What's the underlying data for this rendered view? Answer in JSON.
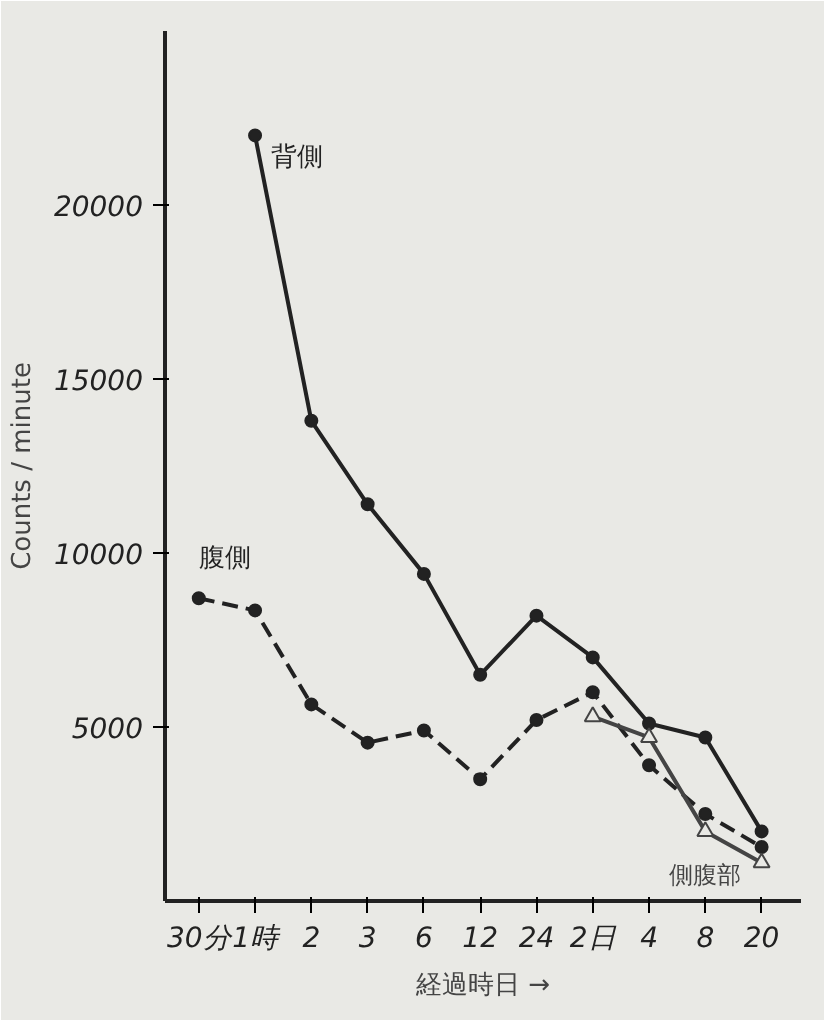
{
  "chart_data": {
    "type": "line",
    "xlabel": "経過時日 →",
    "ylabel": "Counts / minute",
    "categories": [
      "30分",
      "1時",
      "2",
      "3",
      "6",
      "12",
      "24",
      "2日",
      "4",
      "8",
      "20"
    ],
    "series": [
      {
        "name": "背側",
        "color": "#222222",
        "line_style": "solid",
        "marker": "circle",
        "values": [
          null,
          22000,
          13800,
          11400,
          9400,
          6500,
          8200,
          7000,
          5100,
          4700,
          2000
        ]
      },
      {
        "name": "腹側",
        "color": "#222222",
        "line_style": "dashed",
        "marker": "circle",
        "values": [
          8700,
          8350,
          5650,
          4550,
          4900,
          3500,
          5200,
          6000,
          3900,
          2500,
          1550
        ]
      },
      {
        "name": "側腹部",
        "color": "#444444",
        "line_style": "solid",
        "marker": "triangle",
        "values": [
          null,
          null,
          null,
          null,
          null,
          null,
          null,
          5300,
          4700,
          2000,
          1100
        ]
      }
    ],
    "ylim": [
      0,
      25000
    ],
    "yticks": [
      5000,
      10000,
      15000,
      20000
    ]
  }
}
